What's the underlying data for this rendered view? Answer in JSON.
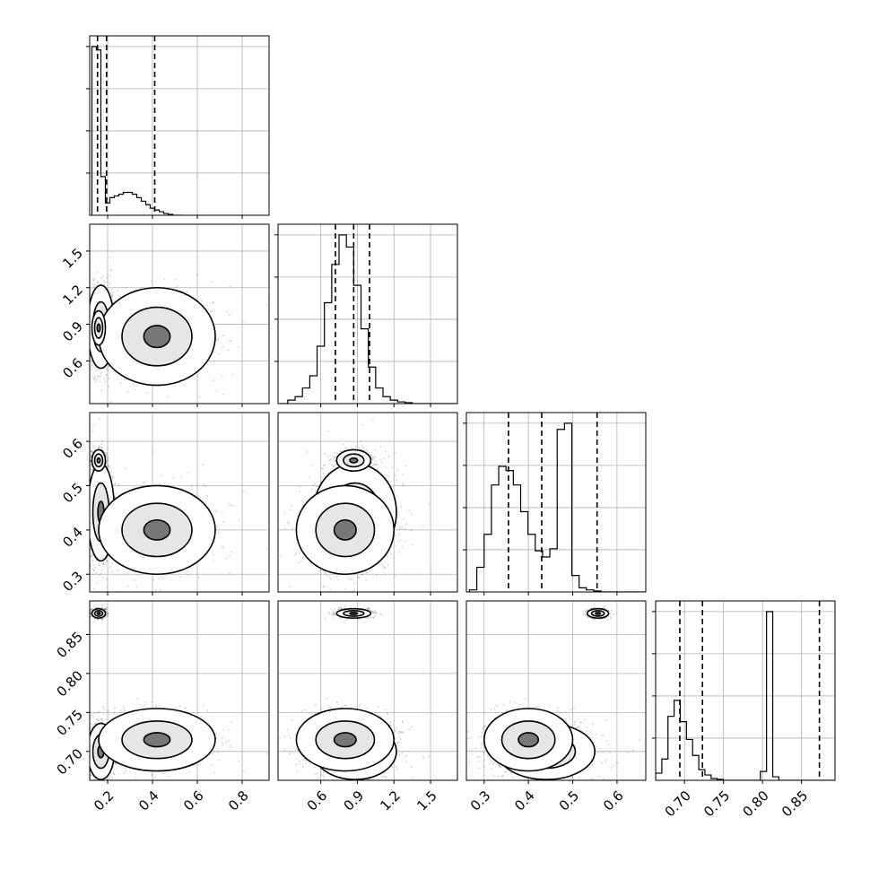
{
  "chart_data": {
    "type": "corner",
    "parameters": [
      {
        "range": [
          0.12,
          0.92
        ],
        "ticks": [
          0.2,
          0.4,
          0.6,
          0.8
        ],
        "tick_labels": [
          "0.2",
          "0.4",
          "0.6",
          "0.8"
        ],
        "quantiles": [
          0.155,
          0.195,
          0.41
        ]
      },
      {
        "range": [
          0.25,
          1.72
        ],
        "ticks": [
          0.6,
          0.9,
          1.2,
          1.5
        ],
        "tick_labels": [
          "0.6",
          "0.9",
          "1.2",
          "1.5"
        ],
        "quantiles": [
          0.72,
          0.87,
          1.0
        ]
      },
      {
        "range": [
          0.26,
          0.665
        ],
        "ticks": [
          0.3,
          0.4,
          0.5,
          0.6
        ],
        "tick_labels": [
          "0.3",
          "0.4",
          "0.5",
          "0.6"
        ],
        "quantiles": [
          0.355,
          0.43,
          0.555
        ]
      },
      {
        "range": [
          0.663,
          0.893
        ],
        "ticks": [
          0.7,
          0.75,
          0.8,
          0.85
        ],
        "tick_labels": [
          "0.70",
          "0.75",
          "0.80",
          "0.85"
        ],
        "quantiles": [
          0.694,
          0.723,
          0.873
        ]
      }
    ],
    "histograms": [
      {
        "bin_width": 0.02,
        "start": 0.13,
        "counts": [
          0.96,
          0.94,
          0.22,
          0.07,
          0.1,
          0.11,
          0.12,
          0.13,
          0.13,
          0.12,
          0.1,
          0.08,
          0.06,
          0.04,
          0.03,
          0.02,
          0.01,
          0.005,
          0.0,
          0.0
        ]
      },
      {
        "bin_width": 0.06,
        "start": 0.27,
        "counts": [
          0.0,
          0.02,
          0.04,
          0.09,
          0.16,
          0.33,
          0.58,
          0.8,
          0.97,
          0.9,
          0.68,
          0.43,
          0.21,
          0.09,
          0.04,
          0.02,
          0.01,
          0.005,
          0.0,
          0.0,
          0.0,
          0.0,
          0.0,
          0.0
        ]
      },
      {
        "bin_width": 0.0165,
        "start": 0.267,
        "counts": [
          0.01,
          0.12,
          0.28,
          0.52,
          0.61,
          0.59,
          0.52,
          0.39,
          0.28,
          0.2,
          0.17,
          0.21,
          0.79,
          0.82,
          0.08,
          0.02,
          0.01,
          0.005,
          0.0,
          0.0,
          0.0,
          0.0,
          0.0,
          0.0
        ]
      },
      {
        "bin_width": 0.0079,
        "start": 0.663,
        "counts": [
          0.04,
          0.12,
          0.36,
          0.45,
          0.33,
          0.23,
          0.14,
          0.06,
          0.03,
          0.01,
          0.005,
          0.0,
          0.0,
          0.0,
          0.0,
          0.0,
          0.0,
          0.05,
          0.95,
          0.02,
          0.0,
          0.0,
          0.0,
          0.0,
          0.0,
          0.0,
          0.0,
          0.0,
          0.0
        ]
      }
    ],
    "modes": [
      {
        "weight": 0.55,
        "mean": [
          0.17,
          0.88,
          0.44,
          0.7
        ],
        "sd": [
          0.03,
          0.17,
          0.055,
          0.018
        ]
      },
      {
        "weight": 0.3,
        "mean": [
          0.42,
          0.8,
          0.4,
          0.715
        ],
        "sd": [
          0.13,
          0.2,
          0.05,
          0.02
        ]
      },
      {
        "weight": 0.3,
        "mean": [
          0.16,
          0.87,
          0.557,
          0.877
        ],
        "sd": [
          0.015,
          0.07,
          0.012,
          0.003
        ]
      }
    ],
    "grid": true
  }
}
